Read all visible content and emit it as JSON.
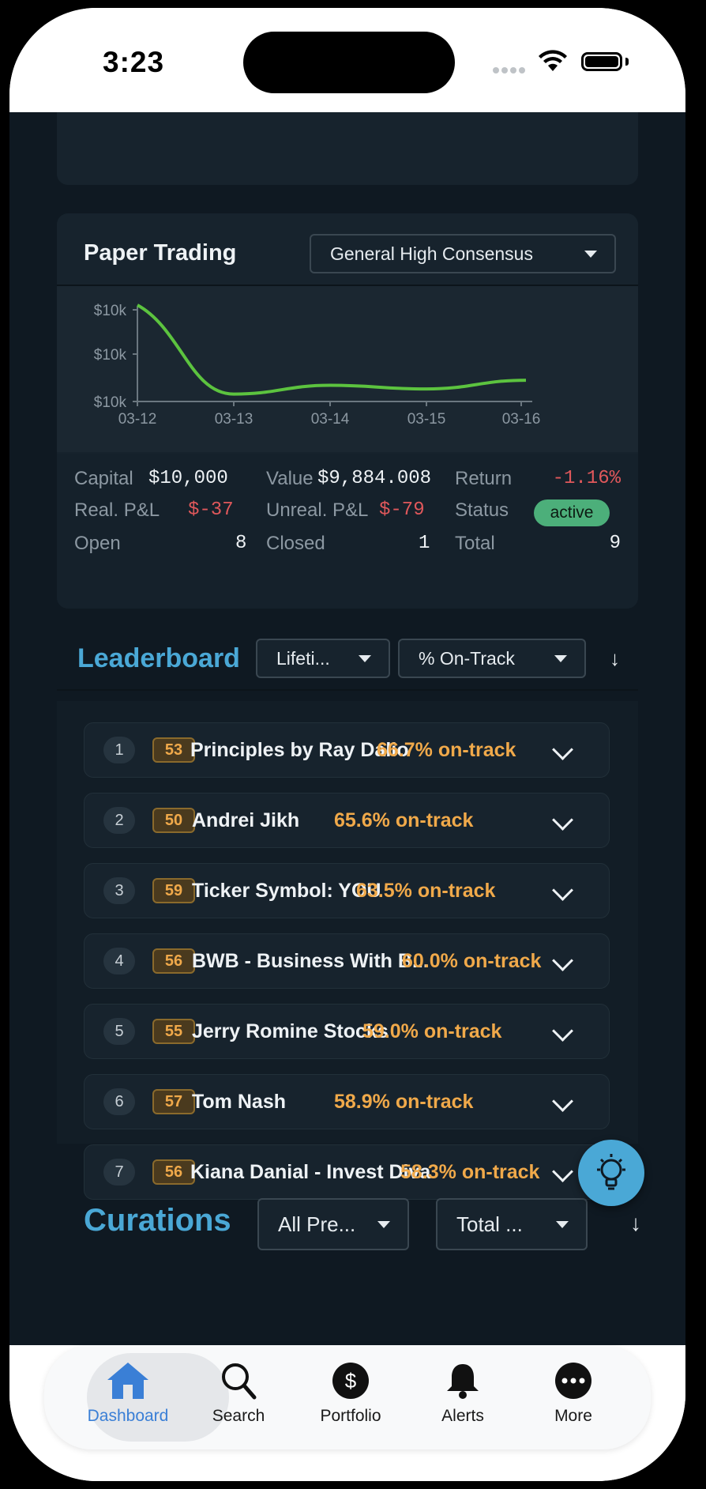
{
  "status_bar": {
    "time": "3:23"
  },
  "paper_trading": {
    "title": "Paper Trading",
    "strategy_dropdown": "General High Consensus",
    "chart_data": {
      "type": "line",
      "x": [
        "03-12",
        "03-13",
        "03-14",
        "03-15",
        "03-16"
      ],
      "y_tick_labels": [
        "$10k",
        "$10k",
        "$10k"
      ],
      "series": [
        {
          "values": [
            10000,
            9878,
            9890,
            9885,
            9897
          ],
          "color": "#5cc33f"
        }
      ]
    },
    "stats": {
      "capital_label": "Capital",
      "capital": "$10,000",
      "value_label": "Value",
      "value": "$9,884.008",
      "return_label": "Return",
      "return": "-1.16%",
      "realized_label": "Real. P&L",
      "realized": "$-37",
      "unrealized_label": "Unreal. P&L",
      "unrealized": "$-79",
      "status_label": "Status",
      "status": "active",
      "open_label": "Open",
      "open": "8",
      "closed_label": "Closed",
      "closed": "1",
      "total_label": "Total",
      "total": "9"
    }
  },
  "leaderboard": {
    "title": "Leaderboard",
    "period_dropdown": "Lifeti...",
    "metric_dropdown": "% On-Track",
    "sort_icon": "↓",
    "rows": [
      {
        "rank": "1",
        "score": "53",
        "name": "Principles by Ray Dalio",
        "ontrack": "66.7% on-track"
      },
      {
        "rank": "2",
        "score": "50",
        "name": "Andrei Jikh",
        "ontrack": "65.6% on-track"
      },
      {
        "rank": "3",
        "score": "59",
        "name": "Ticker Symbol: YOU",
        "ontrack": "63.5% on-track"
      },
      {
        "rank": "4",
        "score": "56",
        "name": "BWB - Business With B...",
        "ontrack": "60.0% on-track"
      },
      {
        "rank": "5",
        "score": "55",
        "name": "Jerry Romine Stocks",
        "ontrack": "59.0% on-track"
      },
      {
        "rank": "6",
        "score": "57",
        "name": "Tom Nash",
        "ontrack": "58.9% on-track"
      },
      {
        "rank": "7",
        "score": "56",
        "name": "Kiana Danial - Invest Diva",
        "ontrack": "58.3% on-track"
      }
    ]
  },
  "curations": {
    "title": "Curations",
    "filter_dropdown": "All Pre...",
    "sort_dropdown": "Total ...",
    "sort_icon": "↓"
  },
  "tab_bar": {
    "tabs": [
      {
        "label": "Dashboard",
        "icon": "house-icon",
        "active": true
      },
      {
        "label": "Search",
        "icon": "search-icon"
      },
      {
        "label": "Portfolio",
        "icon": "dollar-circle-icon"
      },
      {
        "label": "Alerts",
        "icon": "bell-icon"
      },
      {
        "label": "More",
        "icon": "ellipsis-circle-icon"
      }
    ]
  },
  "colors": {
    "accent": "#4aa8d6",
    "positive_line": "#5cc33f",
    "negative": "#e0585b",
    "ontrack": "#f0a94a",
    "status_active": "#4caf7a"
  }
}
